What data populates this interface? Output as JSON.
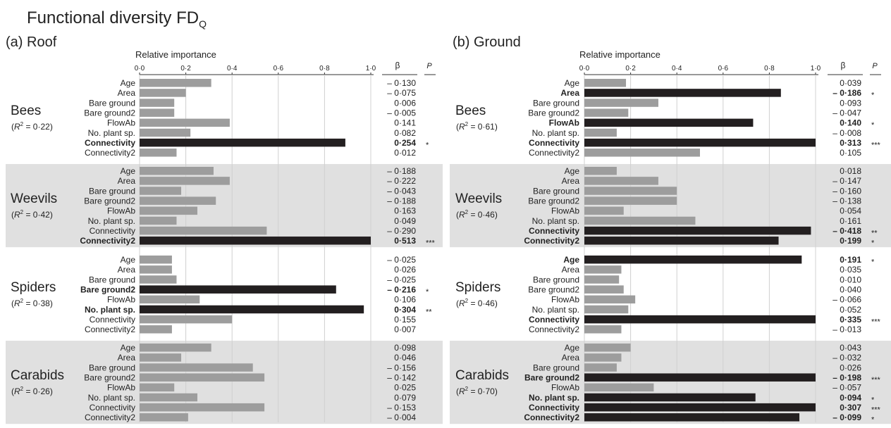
{
  "chart_data": {
    "type": "bar",
    "orientation": "horizontal",
    "title": "Functional diversity FD",
    "title_subscript": "Q",
    "xlabel": "Relative importance",
    "xlim": [
      0,
      1
    ],
    "xticks": [
      0,
      0.2,
      0.4,
      0.6,
      0.8,
      1.0
    ],
    "xtick_labels": [
      "0·0",
      "0·2",
      "0·4",
      "0·6",
      "0·8",
      "1·0"
    ],
    "beta_header": "β",
    "p_header": "P",
    "grid": true,
    "shaded_groups": [
      "Weevils",
      "Carabids"
    ],
    "colors": {
      "significant": "#231f20",
      "non_significant": "#9d9d9d",
      "band": "#e0e0e0"
    },
    "panels": [
      {
        "label": "(a)  Roof",
        "groups": [
          {
            "name": "Bees",
            "r2_value": "0·22",
            "rows": [
              {
                "predictor": "Age",
                "importance": 0.31,
                "beta": "– 0·130",
                "p": "",
                "significant": false
              },
              {
                "predictor": "Area",
                "importance": 0.2,
                "beta": "– 0·075",
                "p": "",
                "significant": false
              },
              {
                "predictor": "Bare ground",
                "importance": 0.15,
                "beta": "0·006",
                "p": "",
                "significant": false
              },
              {
                "predictor": "Bare ground2",
                "importance": 0.15,
                "beta": "– 0·005",
                "p": "",
                "significant": false
              },
              {
                "predictor": "FlowAb",
                "importance": 0.39,
                "beta": "0·141",
                "p": "",
                "significant": false
              },
              {
                "predictor": "No. plant sp.",
                "importance": 0.22,
                "beta": "0·082",
                "p": "",
                "significant": false
              },
              {
                "predictor": "Connectivity",
                "importance": 0.89,
                "beta": "0·254",
                "p": "*",
                "significant": true
              },
              {
                "predictor": "Connectivity2",
                "importance": 0.16,
                "beta": "0·012",
                "p": "",
                "significant": false
              }
            ]
          },
          {
            "name": "Weevils",
            "r2_value": "0·42",
            "rows": [
              {
                "predictor": "Age",
                "importance": 0.32,
                "beta": "– 0·188",
                "p": "",
                "significant": false
              },
              {
                "predictor": "Area",
                "importance": 0.39,
                "beta": "– 0·222",
                "p": "",
                "significant": false
              },
              {
                "predictor": "Bare ground",
                "importance": 0.18,
                "beta": "– 0·043",
                "p": "",
                "significant": false
              },
              {
                "predictor": "Bare ground2",
                "importance": 0.33,
                "beta": "– 0·188",
                "p": "",
                "significant": false
              },
              {
                "predictor": "FlowAb",
                "importance": 0.25,
                "beta": "0·163",
                "p": "",
                "significant": false
              },
              {
                "predictor": "No. plant sp.",
                "importance": 0.16,
                "beta": "0·049",
                "p": "",
                "significant": false
              },
              {
                "predictor": "Connectivity",
                "importance": 0.55,
                "beta": "– 0·290",
                "p": "",
                "significant": false
              },
              {
                "predictor": "Connectivity2",
                "importance": 1.0,
                "beta": "0·513",
                "p": "***",
                "significant": true
              }
            ]
          },
          {
            "name": "Spiders",
            "r2_value": "0·38",
            "rows": [
              {
                "predictor": "Age",
                "importance": 0.14,
                "beta": "– 0·025",
                "p": "",
                "significant": false
              },
              {
                "predictor": "Area",
                "importance": 0.14,
                "beta": "0·026",
                "p": "",
                "significant": false
              },
              {
                "predictor": "Bare ground",
                "importance": 0.16,
                "beta": "– 0·025",
                "p": "",
                "significant": false
              },
              {
                "predictor": "Bare ground2",
                "importance": 0.85,
                "beta": "– 0·216",
                "p": "*",
                "significant": true
              },
              {
                "predictor": "FlowAb",
                "importance": 0.26,
                "beta": "0·106",
                "p": "",
                "significant": false
              },
              {
                "predictor": "No. plant sp.",
                "importance": 0.97,
                "beta": "0·304",
                "p": "**",
                "significant": true
              },
              {
                "predictor": "Connectivity",
                "importance": 0.4,
                "beta": "0·155",
                "p": "",
                "significant": false
              },
              {
                "predictor": "Connectivity2",
                "importance": 0.14,
                "beta": "0·007",
                "p": "",
                "significant": false
              }
            ]
          },
          {
            "name": "Carabids",
            "r2_value": "0·26",
            "rows": [
              {
                "predictor": "Age",
                "importance": 0.31,
                "beta": "0·098",
                "p": "",
                "significant": false
              },
              {
                "predictor": "Area",
                "importance": 0.18,
                "beta": "0·046",
                "p": "",
                "significant": false
              },
              {
                "predictor": "Bare ground",
                "importance": 0.49,
                "beta": "– 0·156",
                "p": "",
                "significant": false
              },
              {
                "predictor": "Bare ground2",
                "importance": 0.54,
                "beta": "– 0·142",
                "p": "",
                "significant": false
              },
              {
                "predictor": "FlowAb",
                "importance": 0.15,
                "beta": "0·025",
                "p": "",
                "significant": false
              },
              {
                "predictor": "No. plant sp.",
                "importance": 0.25,
                "beta": "0·079",
                "p": "",
                "significant": false
              },
              {
                "predictor": "Connectivity",
                "importance": 0.54,
                "beta": "– 0·153",
                "p": "",
                "significant": false
              },
              {
                "predictor": "Connectivity2",
                "importance": 0.21,
                "beta": "– 0·004",
                "p": "",
                "significant": false
              }
            ]
          }
        ]
      },
      {
        "label": "(b)  Ground",
        "groups": [
          {
            "name": "Bees",
            "r2_value": "0·61",
            "rows": [
              {
                "predictor": "Age",
                "importance": 0.18,
                "beta": "0·039",
                "p": "",
                "significant": false
              },
              {
                "predictor": "Area",
                "importance": 0.85,
                "beta": "– 0·186",
                "p": "*",
                "significant": true
              },
              {
                "predictor": "Bare ground",
                "importance": 0.32,
                "beta": "0·093",
                "p": "",
                "significant": false
              },
              {
                "predictor": "Bare ground2",
                "importance": 0.19,
                "beta": "– 0·047",
                "p": "",
                "significant": false
              },
              {
                "predictor": "FlowAb",
                "importance": 0.73,
                "beta": "0·140",
                "p": "*",
                "significant": true
              },
              {
                "predictor": "No. plant sp.",
                "importance": 0.14,
                "beta": "– 0·008",
                "p": "",
                "significant": false
              },
              {
                "predictor": "Connectivity",
                "importance": 1.0,
                "beta": "0·313",
                "p": "***",
                "significant": true
              },
              {
                "predictor": "Connectivity2",
                "importance": 0.5,
                "beta": "0·105",
                "p": "",
                "significant": false
              }
            ]
          },
          {
            "name": "Weevils",
            "r2_value": "0·46",
            "rows": [
              {
                "predictor": "Age",
                "importance": 0.14,
                "beta": "0·018",
                "p": "",
                "significant": false
              },
              {
                "predictor": "Area",
                "importance": 0.32,
                "beta": "– 0·147",
                "p": "",
                "significant": false
              },
              {
                "predictor": "Bare ground",
                "importance": 0.4,
                "beta": "– 0·160",
                "p": "",
                "significant": false
              },
              {
                "predictor": "Bare ground2",
                "importance": 0.4,
                "beta": "– 0·138",
                "p": "",
                "significant": false
              },
              {
                "predictor": "FlowAb",
                "importance": 0.17,
                "beta": "0·054",
                "p": "",
                "significant": false
              },
              {
                "predictor": "No. plant sp.",
                "importance": 0.48,
                "beta": "0·161",
                "p": "",
                "significant": false
              },
              {
                "predictor": "Connectivity",
                "importance": 0.98,
                "beta": "– 0·418",
                "p": "**",
                "significant": true
              },
              {
                "predictor": "Connectivity2",
                "importance": 0.84,
                "beta": "0·199",
                "p": "*",
                "significant": true
              }
            ]
          },
          {
            "name": "Spiders",
            "r2_value": "0·46",
            "rows": [
              {
                "predictor": "Age",
                "importance": 0.94,
                "beta": "0·191",
                "p": "*",
                "significant": true
              },
              {
                "predictor": "Area",
                "importance": 0.16,
                "beta": "0·035",
                "p": "",
                "significant": false
              },
              {
                "predictor": "Bare ground",
                "importance": 0.15,
                "beta": "0·010",
                "p": "",
                "significant": false
              },
              {
                "predictor": "Bare ground2",
                "importance": 0.17,
                "beta": "0·040",
                "p": "",
                "significant": false
              },
              {
                "predictor": "FlowAb",
                "importance": 0.22,
                "beta": "– 0·066",
                "p": "",
                "significant": false
              },
              {
                "predictor": "No. plant sp.",
                "importance": 0.19,
                "beta": "0·052",
                "p": "",
                "significant": false
              },
              {
                "predictor": "Connectivity",
                "importance": 1.0,
                "beta": "0·335",
                "p": "***",
                "significant": true
              },
              {
                "predictor": "Connectivity2",
                "importance": 0.16,
                "beta": "– 0·013",
                "p": "",
                "significant": false
              }
            ]
          },
          {
            "name": "Carabids",
            "r2_value": "0·70",
            "rows": [
              {
                "predictor": "Age",
                "importance": 0.2,
                "beta": "0·043",
                "p": "",
                "significant": false
              },
              {
                "predictor": "Area",
                "importance": 0.16,
                "beta": "– 0·032",
                "p": "",
                "significant": false
              },
              {
                "predictor": "Bare ground",
                "importance": 0.14,
                "beta": "0·026",
                "p": "",
                "significant": false
              },
              {
                "predictor": "Bare ground2",
                "importance": 1.0,
                "beta": "– 0·198",
                "p": "***",
                "significant": true
              },
              {
                "predictor": "FlowAb",
                "importance": 0.3,
                "beta": "– 0·057",
                "p": "",
                "significant": false
              },
              {
                "predictor": "No. plant sp.",
                "importance": 0.74,
                "beta": "0·094",
                "p": "*",
                "significant": true
              },
              {
                "predictor": "Connectivity",
                "importance": 1.0,
                "beta": "0·307",
                "p": "***",
                "significant": true
              },
              {
                "predictor": "Connectivity2",
                "importance": 0.93,
                "beta": "– 0·099",
                "p": "*",
                "significant": true
              }
            ]
          }
        ]
      }
    ]
  }
}
